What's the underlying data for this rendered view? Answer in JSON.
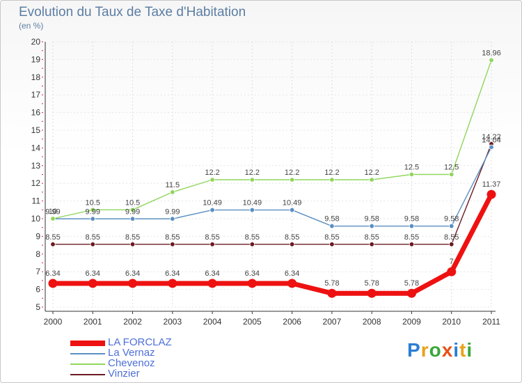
{
  "title": "Evolution du Taux de Taxe d'Habitation",
  "subtitle": "(en %)",
  "logo": "Proxiti",
  "colors": {
    "title": "#5b7da3",
    "legend_text": "#4d6fd8",
    "axis": "#333333",
    "grid": "#dddddd"
  },
  "chart_data": {
    "type": "line",
    "title": "Evolution du Taux de Taxe d'Habitation",
    "ylabel": "(en %)",
    "xlabel": "",
    "ylim": [
      5,
      20
    ],
    "yticks": [
      "5",
      "6",
      "7",
      "8",
      "9",
      "10",
      "11",
      "12",
      "13",
      "14",
      "15",
      "16",
      "17",
      "18",
      "19",
      "20"
    ],
    "categories": [
      "2000",
      "2001",
      "2002",
      "2003",
      "2004",
      "2005",
      "2006",
      "2007",
      "2008",
      "2009",
      "2010",
      "2011"
    ],
    "series": [
      {
        "name": "Vinzier",
        "color": "#6b1a22",
        "weight": "thin",
        "values": [
          8.55,
          8.55,
          8.55,
          8.55,
          8.55,
          8.55,
          8.55,
          8.55,
          8.55,
          8.55,
          8.55,
          14.22
        ],
        "labels": [
          "8.55",
          "8.55",
          "8.55",
          "8.55",
          "8.55",
          "8.55",
          "8.55",
          "8.55",
          "8.55",
          "8.55",
          "8.55",
          "14.22"
        ]
      },
      {
        "name": "La Vernaz",
        "color": "#5b8fc2",
        "weight": "thin",
        "values": [
          9.99,
          9.99,
          9.99,
          9.99,
          10.49,
          10.49,
          10.49,
          9.58,
          9.58,
          9.58,
          9.58,
          14.04
        ],
        "labels": [
          "9.99",
          "9.99",
          "9.99",
          "9.99",
          "10.49",
          "10.49",
          "10.49",
          "9.58",
          "9.58",
          "9.58",
          "9.58",
          "14.04"
        ]
      },
      {
        "name": "Chevenoz",
        "color": "#8fd65c",
        "weight": "thin",
        "values": [
          10,
          10.5,
          10.5,
          11.5,
          12.2,
          12.2,
          12.2,
          12.2,
          12.2,
          12.5,
          12.5,
          18.96
        ],
        "labels": [
          "10",
          "10.5",
          "10.5",
          "11.5",
          "12.2",
          "12.2",
          "12.2",
          "12.2",
          "12.2",
          "12.5",
          "12.5",
          "18.96"
        ]
      },
      {
        "name": "LA FORCLAZ",
        "color": "#ee1111",
        "weight": "thick",
        "values": [
          6.34,
          6.34,
          6.34,
          6.34,
          6.34,
          6.34,
          6.34,
          5.78,
          5.78,
          5.78,
          7,
          11.37
        ],
        "labels": [
          "6.34",
          "6.34",
          "6.34",
          "6.34",
          "6.34",
          "6.34",
          "6.34",
          "5.78",
          "5.78",
          "5.78",
          "7",
          "11.37"
        ]
      }
    ],
    "legend": [
      "LA FORCLAZ",
      "La Vernaz",
      "Chevenoz",
      "Vinzier"
    ],
    "legend_position": "bottom-left"
  }
}
